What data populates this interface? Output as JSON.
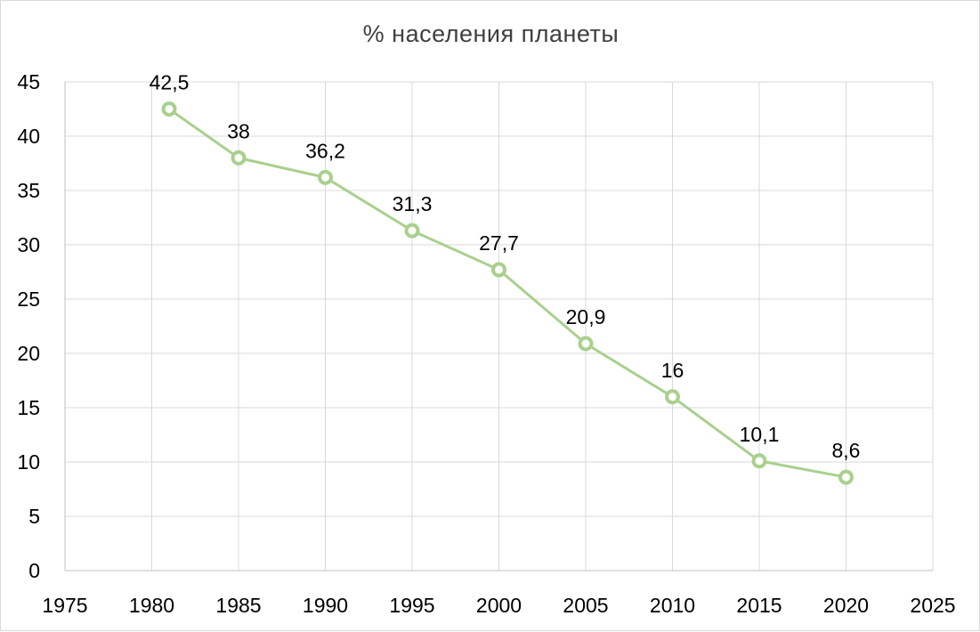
{
  "chart_data": {
    "type": "scatter",
    "title": "% населения планеты",
    "xlabel": "",
    "ylabel": "",
    "xlim": [
      1975,
      2025
    ],
    "ylim": [
      0,
      45
    ],
    "x_ticks": [
      "1975",
      "1980",
      "1985",
      "1990",
      "1995",
      "2000",
      "2005",
      "2010",
      "2015",
      "2020",
      "2025"
    ],
    "y_ticks": [
      "0",
      "5",
      "10",
      "15",
      "20",
      "25",
      "30",
      "35",
      "40",
      "45"
    ],
    "grid": true,
    "legend": "none",
    "series": [
      {
        "x": [
          1981,
          1985,
          1990,
          1995,
          2000,
          2005,
          2010,
          2015,
          2020
        ],
        "y": [
          42.5,
          38,
          36.2,
          31.3,
          27.7,
          20.9,
          16,
          10.1,
          8.6
        ],
        "labels": [
          "42,5",
          "38",
          "36,2",
          "31,3",
          "27,7",
          "20,9",
          "16",
          "10,1",
          "8,6"
        ],
        "color": "#a9d08e"
      }
    ]
  }
}
